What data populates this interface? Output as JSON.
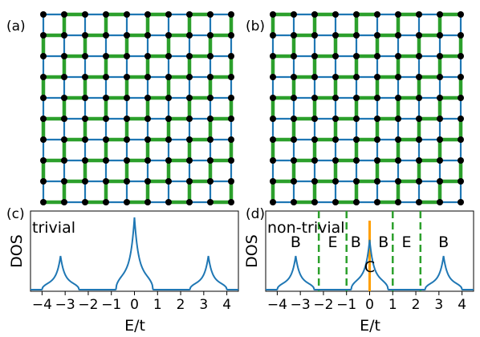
{
  "panels": [
    {
      "id": "a",
      "label": "(a)",
      "kind": "lattice",
      "grid": 10,
      "green_phase": 0
    },
    {
      "id": "b",
      "label": "(b)",
      "kind": "lattice",
      "grid": 10,
      "green_phase": 1
    },
    {
      "id": "c",
      "label": "(c)",
      "kind": "dos",
      "annotation": "trivial"
    },
    {
      "id": "d",
      "label": "(d)",
      "kind": "dos",
      "annotation": "non-trivial"
    }
  ],
  "colors": {
    "hop_weak": "#1f77b4",
    "hop_strong": "#2ca02c",
    "site": "#000000",
    "dos_line": "#1f77b4",
    "gap_line": "#2ca02c",
    "corner_mode": "#ff9f00"
  },
  "chart_data": [
    {
      "panel": "c",
      "type": "line",
      "title": "",
      "xlabel": "E/t",
      "ylabel": "DOS",
      "xlim": [
        -4.5,
        4.5
      ],
      "xticks": [
        -4,
        -3,
        -2,
        -1,
        0,
        1,
        2,
        3,
        4
      ],
      "xtick_labels": [
        "−4",
        "−3",
        "−2",
        "−1",
        "0",
        "1",
        "2",
        "3",
        "4"
      ],
      "yticks": [],
      "grid": false,
      "annotation": "trivial",
      "series": [
        {
          "peaks": [
            {
              "center": -3.2,
              "lo": -4.0,
              "hi": -2.4,
              "height": 0.42
            },
            {
              "center": 0.0,
              "lo": -0.8,
              "hi": 0.8,
              "height": 0.9
            },
            {
              "center": 3.2,
              "lo": 2.4,
              "hi": 4.0,
              "height": 0.42
            }
          ]
        }
      ]
    },
    {
      "panel": "d",
      "type": "line",
      "title": "",
      "xlabel": "E/t",
      "ylabel": "DOS",
      "xlim": [
        -4.5,
        4.5
      ],
      "xticks": [
        -4,
        -3,
        -2,
        -1,
        0,
        1,
        2,
        3,
        4
      ],
      "xtick_labels": [
        "−4",
        "−3",
        "−2",
        "−1",
        "0",
        "1",
        "2",
        "3",
        "4"
      ],
      "yticks": [],
      "grid": false,
      "annotation": "non-trivial",
      "series": [
        {
          "peaks": [
            {
              "center": -3.2,
              "lo": -4.0,
              "hi": -2.4,
              "height": 0.42
            },
            {
              "center": 0.0,
              "lo": -0.8,
              "hi": 0.8,
              "height": 0.62
            },
            {
              "center": 3.2,
              "lo": 2.4,
              "hi": 4.0,
              "height": 0.42
            }
          ]
        }
      ],
      "vlines": [
        -2.2,
        -1.0,
        1.0,
        2.2
      ],
      "corner_mode": {
        "x": 0.0,
        "height": 0.88
      },
      "region_labels": [
        {
          "text": "B",
          "x": -3.2,
          "y": 0.55
        },
        {
          "text": "E",
          "x": -1.6,
          "y": 0.55
        },
        {
          "text": "B",
          "x": -0.6,
          "y": 0.55
        },
        {
          "text": "B",
          "x": 0.6,
          "y": 0.55
        },
        {
          "text": "E",
          "x": 1.6,
          "y": 0.55
        },
        {
          "text": "B",
          "x": 3.2,
          "y": 0.55
        },
        {
          "text": "C",
          "x": 0.0,
          "y": 0.24
        }
      ]
    }
  ]
}
